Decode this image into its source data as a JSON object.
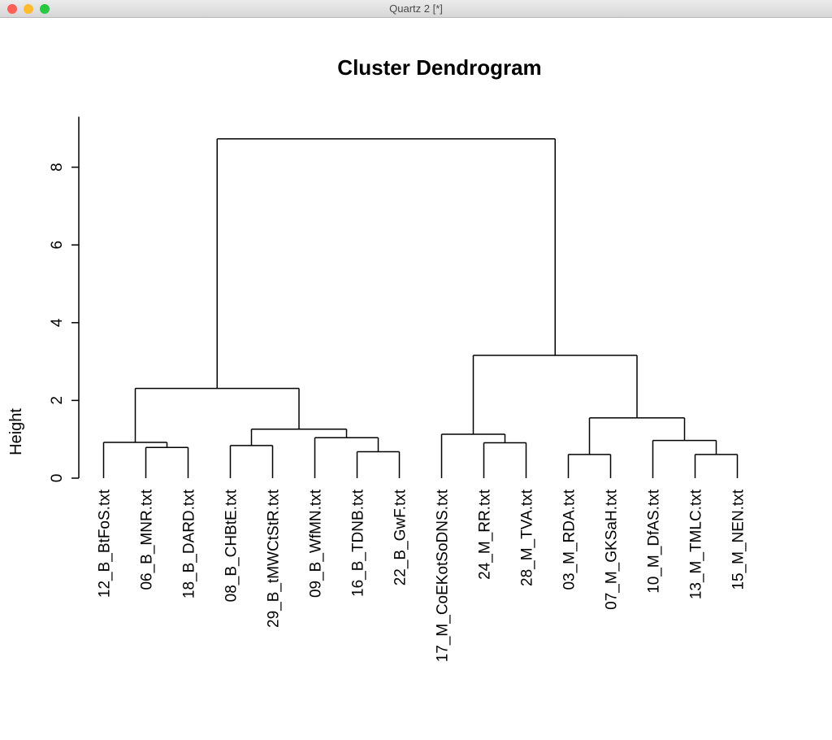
{
  "window": {
    "title": "Quartz 2 [*]",
    "colors": {
      "close": "#fe5f57",
      "minimize": "#febc2e",
      "zoom": "#28c840"
    }
  },
  "chart_data": {
    "type": "dendrogram",
    "title": "Cluster Dendrogram",
    "xlabel": "",
    "ylabel": "Height",
    "ylim": [
      0,
      9.3
    ],
    "yticks": [
      0,
      2,
      4,
      6,
      8
    ],
    "grid": false,
    "legend": "none",
    "leaves": [
      "12_B_BtFoS.txt",
      "06_B_MNR.txt",
      "18_B_DARD.txt",
      "08_B_CHBtE.txt",
      "29_B_tMWCtStR.txt",
      "09_B_WfMN.txt",
      "16_B_TDNB.txt",
      "22_B_GwF.txt",
      "17_M_CoEKotSoDNS.txt",
      "24_M_RR.txt",
      "28_M_TVA.txt",
      "03_M_RDA.txt",
      "07_M_GKSaH.txt",
      "10_M_DfAS.txt",
      "13_M_TMLC.txt",
      "15_M_NEN.txt"
    ],
    "merges": [
      {
        "left": "L1",
        "right": "L2",
        "height": 0.79
      },
      {
        "left": "L0",
        "right": "M0",
        "height": 0.92
      },
      {
        "left": "L3",
        "right": "L4",
        "height": 0.84
      },
      {
        "left": "L6",
        "right": "L7",
        "height": 0.68
      },
      {
        "left": "L5",
        "right": "M3",
        "height": 1.04
      },
      {
        "left": "M2",
        "right": "M4",
        "height": 1.26
      },
      {
        "left": "M1",
        "right": "M5",
        "height": 2.31
      },
      {
        "left": "L9",
        "right": "L10",
        "height": 0.91
      },
      {
        "left": "L8",
        "right": "M7",
        "height": 1.13
      },
      {
        "left": "L11",
        "right": "L12",
        "height": 0.61
      },
      {
        "left": "L14",
        "right": "L15",
        "height": 0.61
      },
      {
        "left": "L13",
        "right": "M10",
        "height": 0.97
      },
      {
        "left": "M9",
        "right": "M11",
        "height": 1.55
      },
      {
        "left": "M8",
        "right": "M12",
        "height": 3.16
      },
      {
        "left": "M6",
        "right": "M13",
        "height": 8.73
      }
    ],
    "leaf_drop": 0.3
  }
}
